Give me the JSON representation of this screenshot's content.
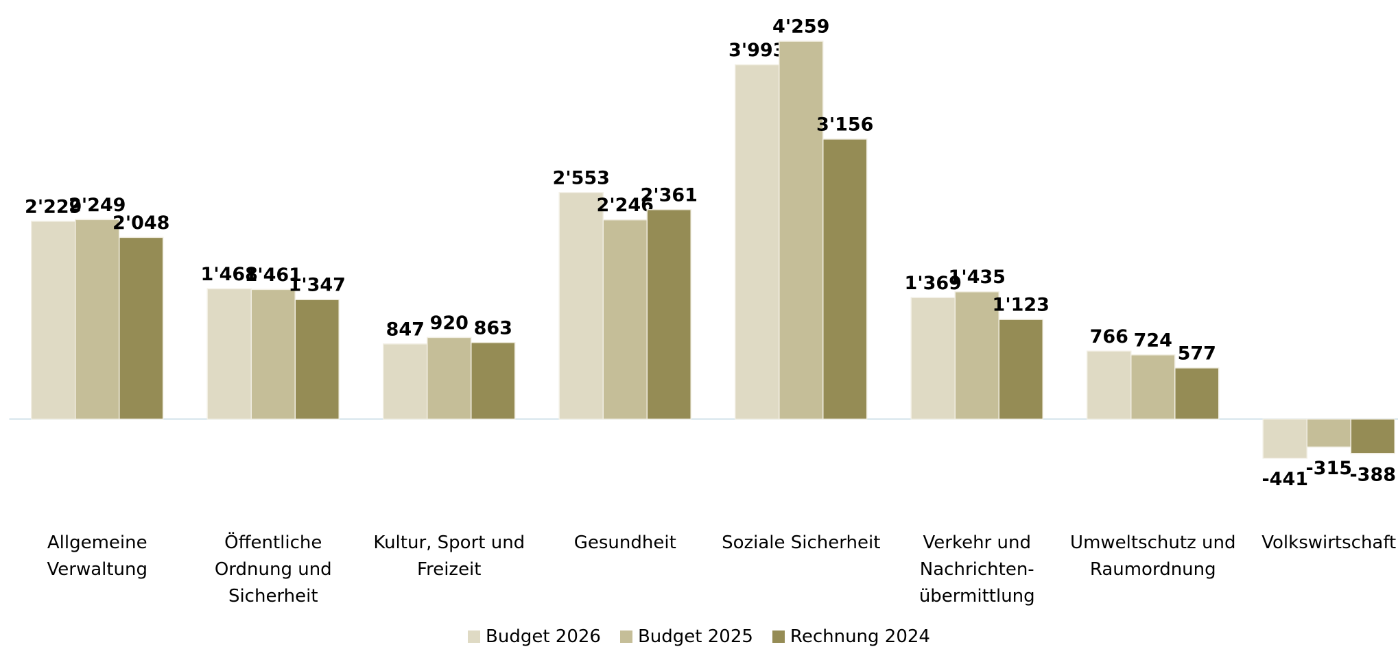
{
  "chart_data": {
    "type": "bar",
    "categories": [
      "Allgemeine Verwaltung",
      "Öffentliche Ordnung und Sicherheit",
      "Kultur, Sport und Freizeit",
      "Gesundheit",
      "Soziale Sicherheit",
      "Verkehr und Nachrichten-übermittlung",
      "Umweltschutz und Raumordnung",
      "Volkswirtschaft"
    ],
    "series": [
      {
        "name": "Budget 2026",
        "color": "#dfdac4",
        "values": [
          2229,
          1468,
          847,
          2553,
          3993,
          1369,
          766,
          -441
        ],
        "value_labels": [
          "2'229",
          "1'468",
          "847",
          "2'553",
          "3'993",
          "1'369",
          "766",
          "-441"
        ]
      },
      {
        "name": "Budget 2025",
        "color": "#c5be98",
        "values": [
          2249,
          1461,
          920,
          2246,
          4259,
          1435,
          724,
          -315
        ],
        "value_labels": [
          "2'249",
          "1'461",
          "920",
          "2'246",
          "4'259",
          "1'435",
          "724",
          "-315"
        ]
      },
      {
        "name": "Rechnung 2024",
        "color": "#958c55",
        "values": [
          2048,
          1347,
          863,
          2361,
          3156,
          1123,
          577,
          -388
        ],
        "value_labels": [
          "2'048",
          "1'347",
          "863",
          "2'361",
          "3'156",
          "1'123",
          "577",
          "-388"
        ]
      }
    ],
    "ylim": [
      -1000,
      4700
    ],
    "grid": false
  }
}
